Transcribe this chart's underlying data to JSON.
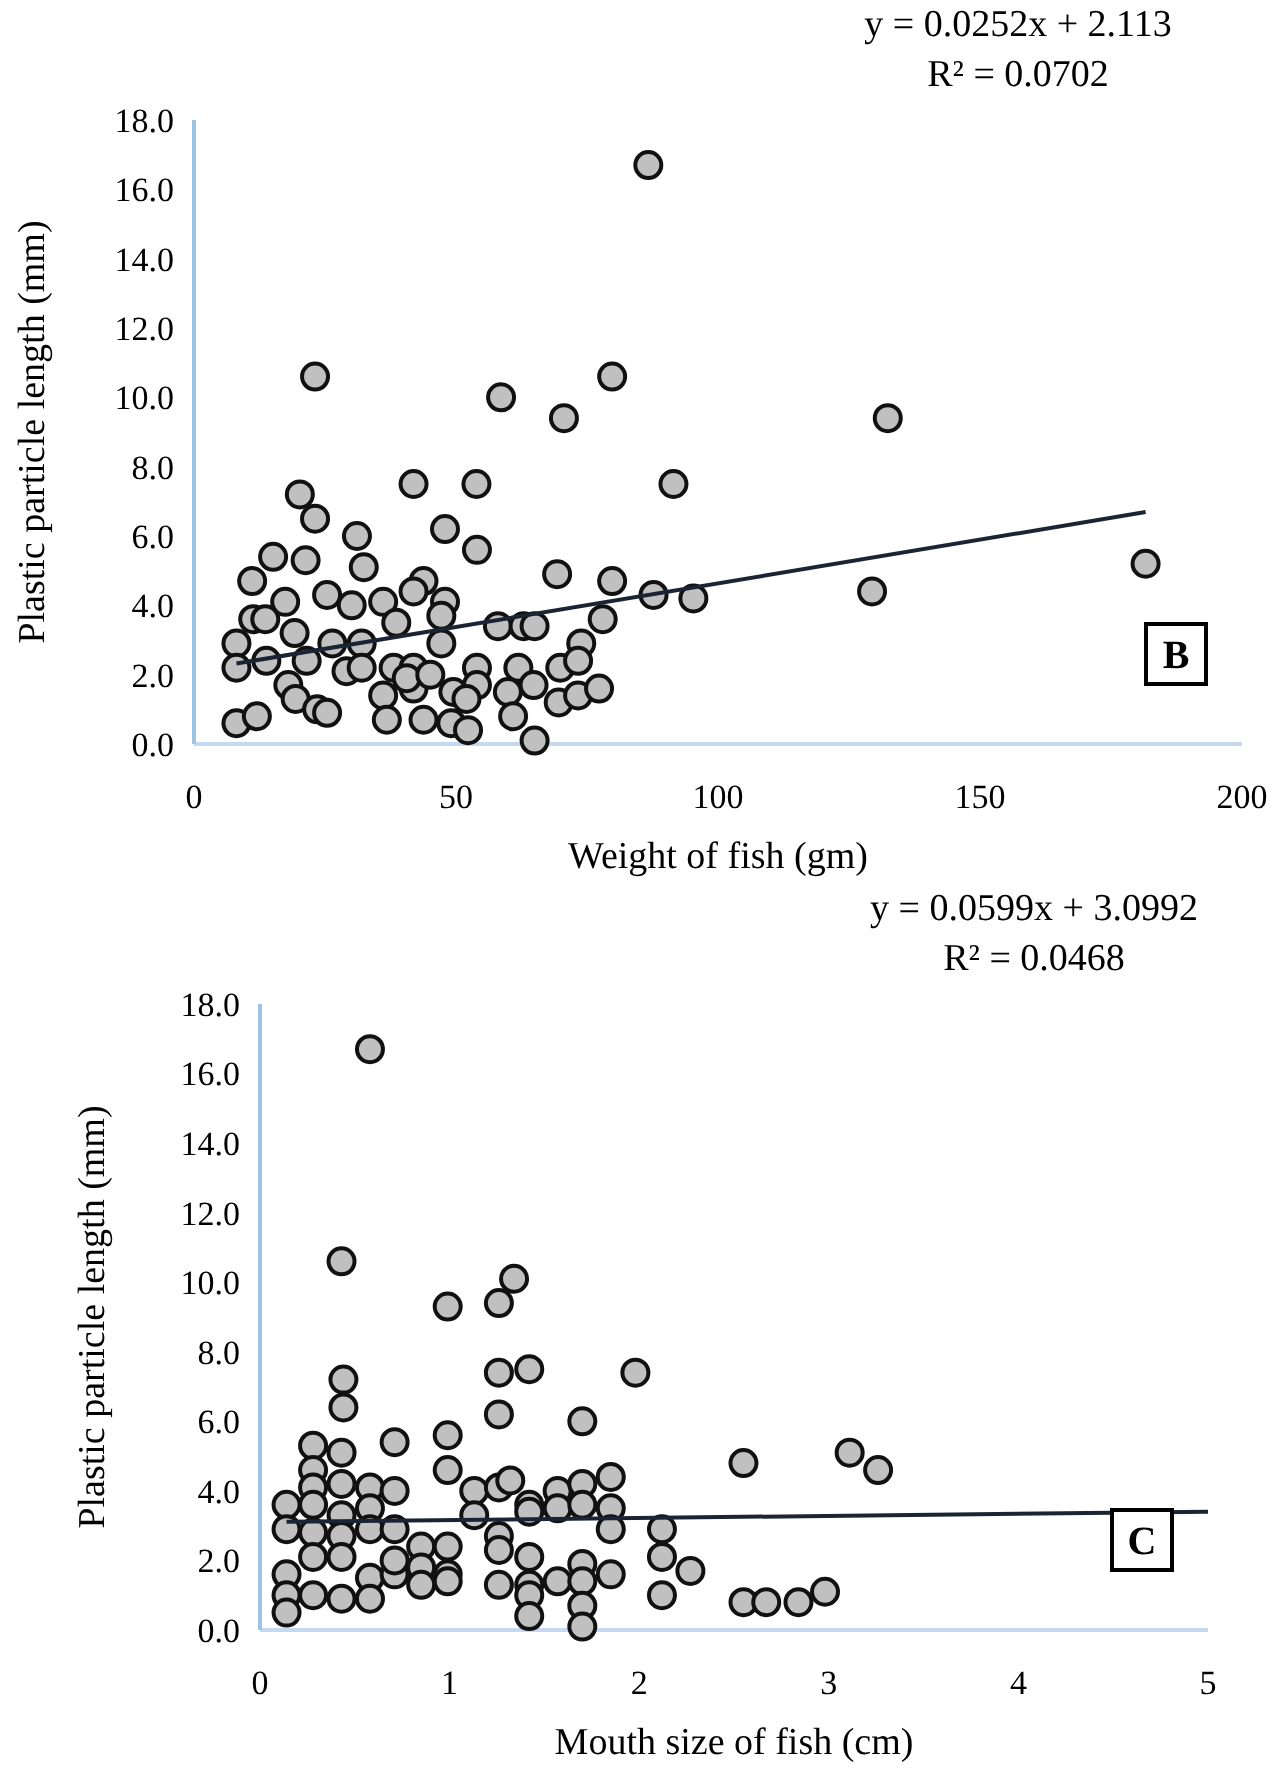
{
  "chart_data": [
    {
      "type": "scatter",
      "xlabel": "Weight of fish (gm)",
      "ylabel": "Plastic particle length (mm)",
      "annotations": [
        "y = 0.0252x + 2.113",
        "R² = 0.0702",
        "B"
      ],
      "xlim": [
        0,
        200
      ],
      "xticks": [
        0,
        50,
        100,
        150,
        200
      ],
      "ylim": [
        0,
        18
      ],
      "yticks": [
        {
          "value": 0,
          "label": "0.0"
        },
        {
          "value": 2,
          "label": "2.0"
        },
        {
          "value": 4,
          "label": "4.0"
        },
        {
          "value": 6,
          "label": "6.0"
        },
        {
          "value": 8,
          "label": "8.0"
        },
        {
          "value": 10,
          "label": "10.0"
        },
        {
          "value": 12,
          "label": "12.0"
        },
        {
          "value": 14,
          "label": "14.0"
        },
        {
          "value": 16,
          "label": "16.0"
        },
        {
          "value": 18,
          "label": "18.0"
        }
      ],
      "grid": false,
      "marker": "circle",
      "series": [
        {
          "color": "#c0c0c0",
          "x": [
            86.7,
            23.1,
            58.6,
            79.8,
            70.6,
            20.2,
            41.9,
            53.9,
            91.5,
            23.1,
            31.1,
            47.9,
            54.0,
            15.1,
            21.3,
            32.4,
            11.1,
            69.3,
            79.8,
            43.8,
            41.9,
            25.4,
            87.7,
            95.3,
            17.4,
            30.1,
            36.1,
            47.9,
            11.3,
            13.6,
            38.6,
            47.2,
            58.0,
            62.9,
            65.0,
            78.0,
            8.1,
            19.2,
            26.4,
            32.0,
            47.2,
            73.9,
            8.1,
            13.8,
            21.5,
            29.1,
            32.0,
            38.1,
            41.9,
            54.0,
            61.9,
            69.9,
            73.3,
            18.0,
            19.4,
            36.1,
            41.9,
            49.5,
            54.0,
            59.9,
            64.8,
            69.6,
            73.3,
            77.3,
            52.0,
            8.1,
            12.0,
            23.5,
            25.4,
            36.8,
            43.8,
            49.1,
            52.3,
            60.9,
            65.0,
            40.6,
            45.1,
            129.4,
            132.4,
            181.6
          ],
          "values": [
            16.7,
            10.6,
            10.0,
            10.6,
            9.4,
            7.2,
            7.5,
            7.5,
            7.5,
            6.5,
            6.0,
            6.2,
            5.6,
            5.4,
            5.3,
            5.1,
            4.7,
            4.9,
            4.7,
            4.7,
            4.4,
            4.3,
            4.3,
            4.2,
            4.1,
            4.0,
            4.1,
            4.1,
            3.6,
            3.6,
            3.5,
            3.7,
            3.4,
            3.4,
            3.4,
            3.6,
            2.9,
            3.2,
            2.9,
            2.9,
            2.9,
            2.9,
            2.2,
            2.4,
            2.4,
            2.1,
            2.2,
            2.2,
            2.2,
            2.2,
            2.2,
            2.2,
            2.4,
            1.7,
            1.3,
            1.4,
            1.6,
            1.5,
            1.7,
            1.5,
            1.7,
            1.2,
            1.4,
            1.6,
            1.3,
            0.6,
            0.8,
            1.0,
            0.9,
            0.7,
            0.7,
            0.6,
            0.4,
            0.8,
            0.1,
            1.9,
            2.0,
            4.4,
            9.4,
            5.2
          ]
        },
        {
          "type": "line",
          "marker": "none",
          "color": "#1a2533",
          "x": [
            8.1,
            181.6
          ],
          "values": [
            2.32,
            6.69
          ]
        }
      ]
    },
    {
      "type": "scatter",
      "xlabel": "Mouth size of fish (cm)",
      "ylabel": "Plastic particle length (mm)",
      "annotations": [
        "y = 0.0599x + 3.0992",
        "R² = 0.0468",
        "C"
      ],
      "xlim": [
        0,
        5
      ],
      "xticks": [
        0,
        1,
        2,
        3,
        4,
        5
      ],
      "ylim": [
        0,
        18
      ],
      "yticks": [
        {
          "value": 0,
          "label": "0.0"
        },
        {
          "value": 2,
          "label": "2.0"
        },
        {
          "value": 4,
          "label": "4.0"
        },
        {
          "value": 6,
          "label": "6.0"
        },
        {
          "value": 8,
          "label": "8.0"
        },
        {
          "value": 10,
          "label": "10.0"
        },
        {
          "value": 12,
          "label": "12.0"
        },
        {
          "value": 14,
          "label": "14.0"
        },
        {
          "value": 16,
          "label": "16.0"
        },
        {
          "value": 18,
          "label": "18.0"
        }
      ],
      "grid": false,
      "marker": "circle",
      "series": [
        {
          "color": "#c0c0c0",
          "x": [
            0.58,
            0.43,
            0.99,
            1.26,
            1.34,
            1.26,
            1.42,
            1.98,
            0.44,
            0.44,
            1.26,
            0.99,
            1.7,
            0.28,
            0.43,
            0.71,
            0.28,
            0.99,
            0.14,
            0.14,
            0.28,
            0.28,
            0.28,
            0.43,
            0.43,
            0.43,
            0.43,
            0.58,
            0.58,
            0.58,
            0.71,
            0.71,
            0.28,
            0.14,
            0.14,
            0.14,
            0.28,
            0.43,
            0.58,
            0.58,
            0.71,
            0.71,
            0.85,
            0.85,
            0.85,
            0.99,
            0.99,
            0.99,
            1.13,
            1.13,
            1.26,
            1.32,
            1.26,
            1.26,
            1.26,
            1.42,
            1.42,
            1.42,
            1.42,
            1.42,
            1.42,
            1.57,
            1.57,
            1.57,
            1.7,
            1.7,
            1.7,
            1.7,
            1.7,
            1.7,
            1.85,
            1.85,
            1.85,
            1.85,
            2.12,
            2.12,
            2.27,
            2.12,
            2.55,
            3.11,
            3.26,
            2.55,
            2.67,
            2.84,
            2.98
          ],
          "values": [
            16.7,
            10.6,
            9.3,
            9.4,
            10.1,
            7.4,
            7.5,
            7.4,
            7.2,
            6.4,
            6.2,
            5.6,
            6.0,
            5.3,
            5.1,
            5.4,
            4.6,
            4.6,
            3.6,
            2.9,
            4.1,
            3.6,
            2.8,
            4.2,
            3.3,
            2.7,
            2.1,
            4.1,
            3.5,
            2.9,
            4.0,
            2.9,
            2.1,
            1.6,
            1.0,
            0.5,
            1.0,
            0.9,
            1.5,
            0.9,
            1.6,
            2.0,
            2.4,
            1.8,
            1.3,
            2.4,
            1.6,
            1.4,
            4.0,
            3.3,
            4.1,
            4.3,
            2.7,
            2.3,
            1.3,
            3.6,
            3.4,
            2.1,
            1.3,
            1.0,
            0.4,
            4.0,
            3.5,
            1.4,
            4.2,
            3.6,
            1.9,
            1.4,
            0.7,
            0.1,
            4.4,
            3.5,
            2.9,
            1.6,
            2.9,
            2.1,
            1.7,
            1.0,
            4.8,
            5.1,
            4.6,
            0.8,
            0.8,
            0.8,
            1.1
          ]
        },
        {
          "type": "line",
          "marker": "none",
          "color": "#1a2533",
          "x": [
            0.14,
            5
          ],
          "values": [
            3.11,
            3.4
          ]
        }
      ]
    }
  ]
}
